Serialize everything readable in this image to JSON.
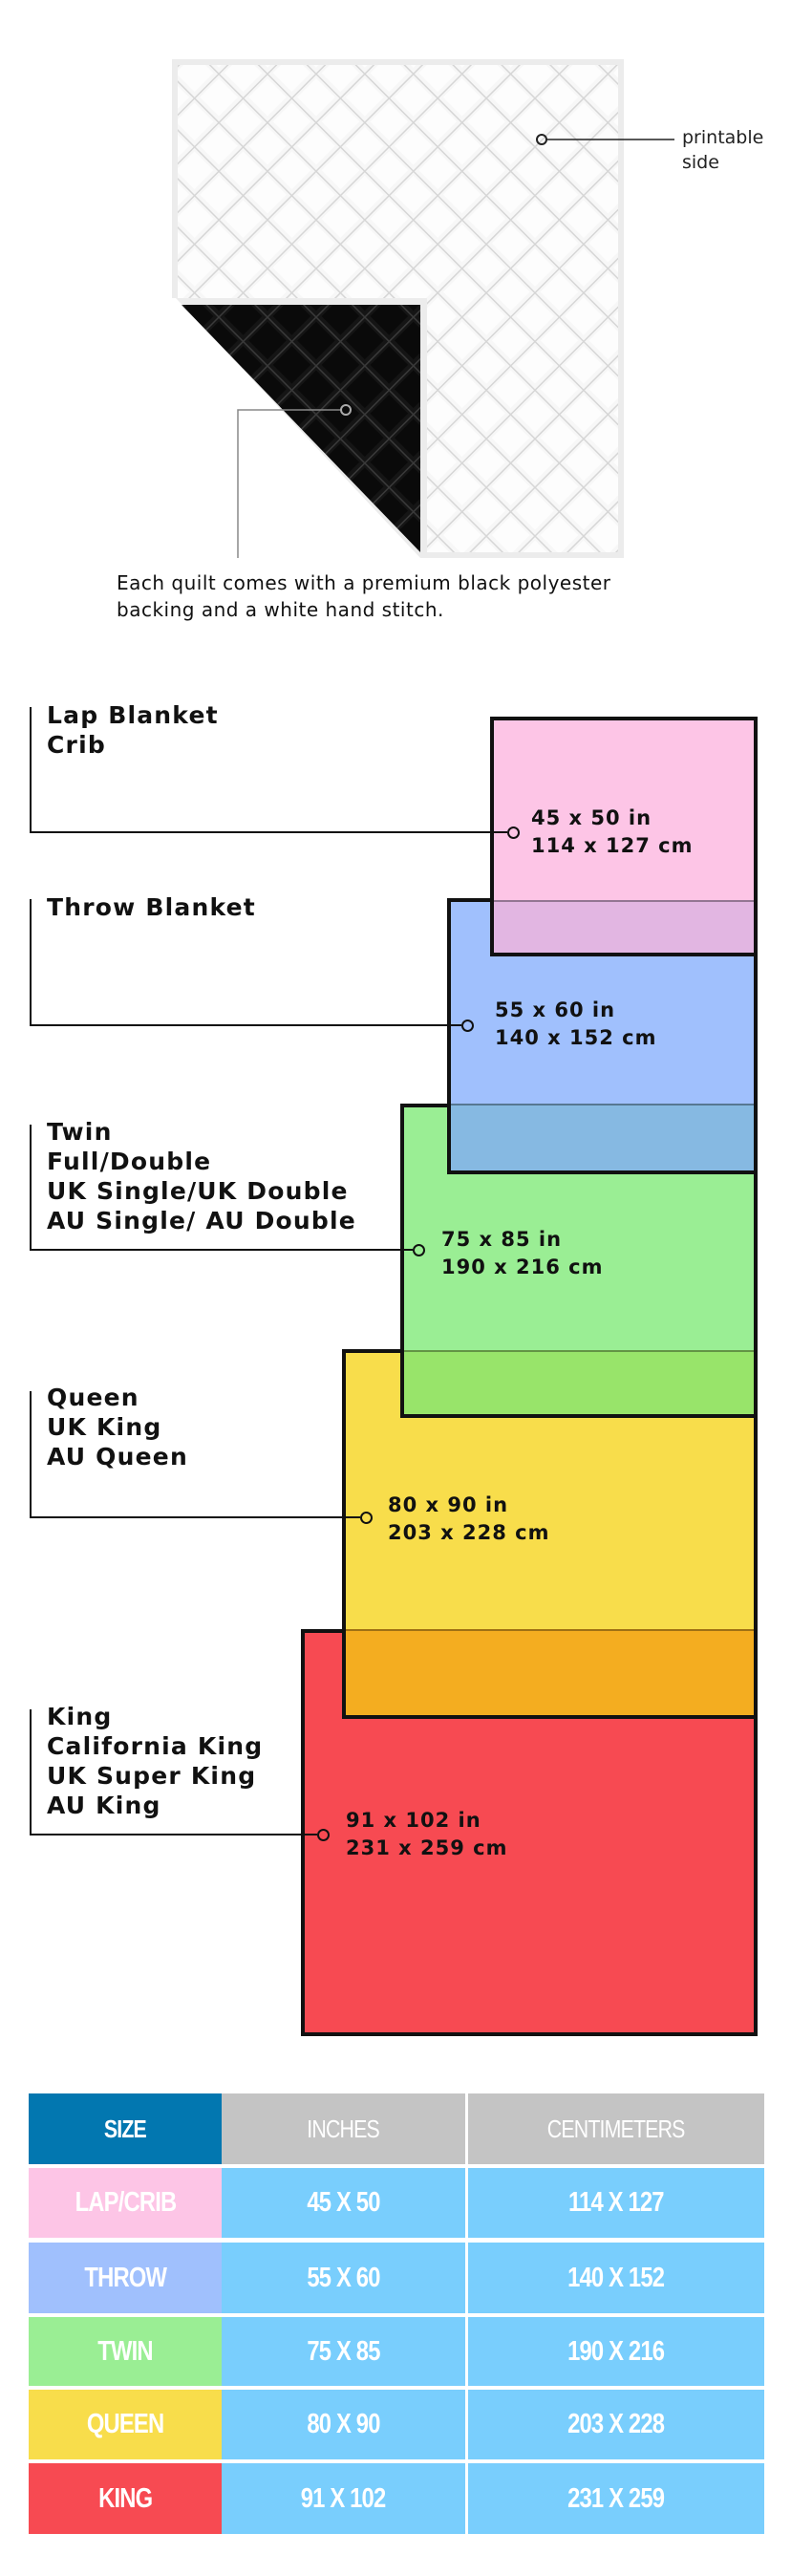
{
  "quilt": {
    "printable_label": "printable side",
    "printable_line1": "printable",
    "printable_line2": "side",
    "caption_line1": "Each quilt comes with a premium black polyester",
    "caption_line2": "backing and a white hand stitch."
  },
  "sizes": [
    {
      "labels": [
        "Lap Blanket",
        "Crib"
      ],
      "inches": "45 x 50 in",
      "cm": "114 x 127 cm",
      "color": "#fdc5e6"
    },
    {
      "labels": [
        "Throw Blanket"
      ],
      "inches": "55 x 60 in",
      "cm": "140 x 152 cm",
      "color": "#a0c0fd"
    },
    {
      "labels": [
        "Twin",
        "Full/Double",
        "UK Single/UK Double",
        "AU Single/ AU Double"
      ],
      "inches": "75 x 85 in",
      "cm": "190 x 216 cm",
      "color": "#9aee94"
    },
    {
      "labels": [
        "Queen",
        "UK King",
        "AU Queen"
      ],
      "inches": "80 x 90 in",
      "cm": "203 x 228 cm",
      "color": "#f8dd4b"
    },
    {
      "labels": [
        "King",
        "California King",
        "UK Super King",
        "AU King"
      ],
      "inches": "91 x 102 in",
      "cm": "231 x 259 cm",
      "color": "#f74a52"
    }
  ],
  "table": {
    "headers": [
      "SIZE",
      "INCHES",
      "CENTIMETERS"
    ],
    "header_colors": {
      "size": "#0277b0",
      "other": "#c4c4c4"
    },
    "cell_color": "#79cefd",
    "rows": [
      {
        "size": "LAP/CRIB",
        "inches": "45 X 50",
        "cm": "114 X 127",
        "color": "#fdc5e6"
      },
      {
        "size": "THROW",
        "inches": "55 X 60",
        "cm": "140 X 152",
        "color": "#a0c0fd"
      },
      {
        "size": "TWIN",
        "inches": "75 X 85",
        "cm": "190 X 216",
        "color": "#9aee94"
      },
      {
        "size": "QUEEN",
        "inches": "80 X 90",
        "cm": "203 X 228",
        "color": "#f8dd4b"
      },
      {
        "size": "KING",
        "inches": "91 X 102",
        "cm": "231 X 259",
        "color": "#f74a52"
      }
    ]
  }
}
